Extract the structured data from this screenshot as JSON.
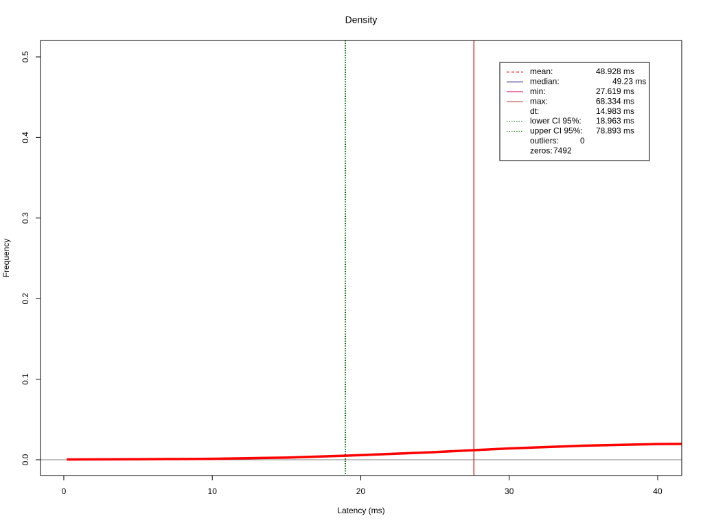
{
  "chart_data": {
    "type": "line",
    "title": "Density",
    "x_label": "Latency (ms)",
    "y_label": "Frequency",
    "xlim": [
      -1.57,
      41.62
    ],
    "ylim": [
      -0.0196,
      0.5204
    ],
    "xticks": [
      0,
      10,
      20,
      30,
      40
    ],
    "yticks": [
      {
        "value": 0,
        "label": "0.0"
      },
      {
        "value": 0.1,
        "label": "0.1"
      },
      {
        "value": 0.2,
        "label": "0.2"
      },
      {
        "value": 0.3,
        "label": "0.3"
      },
      {
        "value": 0.4,
        "label": "0.4"
      },
      {
        "value": 0.5,
        "label": "0.5"
      }
    ],
    "series": [
      {
        "name": "density",
        "color": "#ff0000",
        "x": [
          0.2,
          5,
          10,
          15,
          20,
          25,
          30,
          35,
          40,
          41.6
        ],
        "values": [
          0.0003,
          0.0006,
          0.0012,
          0.0027,
          0.0057,
          0.0095,
          0.014,
          0.0175,
          0.0195,
          0.0197
        ]
      }
    ],
    "vlines": [
      {
        "value": 18.963,
        "color": "#006400",
        "style": "dotted"
      },
      {
        "value": 27.619,
        "color": "#cc0000",
        "style": "solid"
      }
    ],
    "legend": [
      {
        "label": "mean:",
        "value": "48.928 ms",
        "color": "#ff0000",
        "style": "dashed"
      },
      {
        "label": "median:",
        "value": "49.23 ms",
        "color": "#000080",
        "style": "solid"
      },
      {
        "label": "min:",
        "value": "27.619 ms",
        "color": "#e0306a",
        "style": "solid"
      },
      {
        "label": "max:",
        "value": "68.334 ms",
        "color": "#b22222",
        "style": "solid"
      },
      {
        "label": "dt:",
        "value": "14.983 ms"
      },
      {
        "label": "lower CI 95%:",
        "value": "18.963 ms",
        "color": "#006400",
        "style": "dotted"
      },
      {
        "label": "upper CI 95%:",
        "value": "78.893 ms",
        "color": "#228b22",
        "style": "dotted"
      },
      {
        "label": "outliers:",
        "value": "0"
      },
      {
        "label": "zeros:",
        "value": "7492"
      }
    ]
  }
}
